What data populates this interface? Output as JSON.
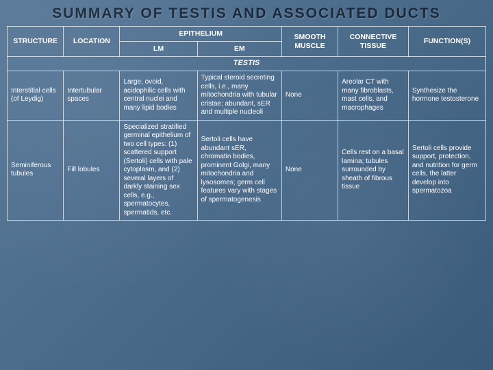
{
  "title": "SUMMARY OF TESTIS AND ASSOCIATED DUCTS",
  "headers": {
    "structure": "STRUCTURE",
    "location": "LOCATION",
    "epithelium": "EPITHELIUM",
    "lm": "LM",
    "em": "EM",
    "muscle": "SMOOTH MUSCLE",
    "tissue": "CONNECTIVE TISSUE",
    "function": "FUNCTION(S)"
  },
  "section": "TESTIS",
  "rows": [
    {
      "structure": "Interstitial cells (of Leydig)",
      "location": "Intertubular spaces",
      "lm": "Large, ovoid, acidophilic cells with central nuclei and many lipid bodies",
      "em": "Typical steroid secreting cells, i.e., many mitochondria with tubular cristae; abundant, sER and multiple nucleoli",
      "muscle": "None",
      "tissue": "Areolar CT with many fibroblasts, mast cells, and macrophages",
      "function": "Synthesize the hormone testosterone"
    },
    {
      "structure": "Seminiferous tubules",
      "location": "Fill lobules",
      "lm": "Specialized stratified germinal epithelium of two cell types: (1) scattered support (Sertoli) cells with pale cytoplasm, and (2) several layers of darkly staining sex cells, e.g., spermatocytes, spermatids, etc.",
      "em": "Sertoli cells have abundant sER, chromatin bodies, prominent Golgi, many mitochondria and lysosomes; germ cell features vary with stages of spermatogenesis",
      "muscle": "None",
      "tissue": "Cells rest on a basal lamina; tubules surrounded by sheath of fibrous tissue",
      "function": "Sertoli cells provide support, protection, and nutrition for germ cells, the latter develop into spermatozoa"
    }
  ]
}
